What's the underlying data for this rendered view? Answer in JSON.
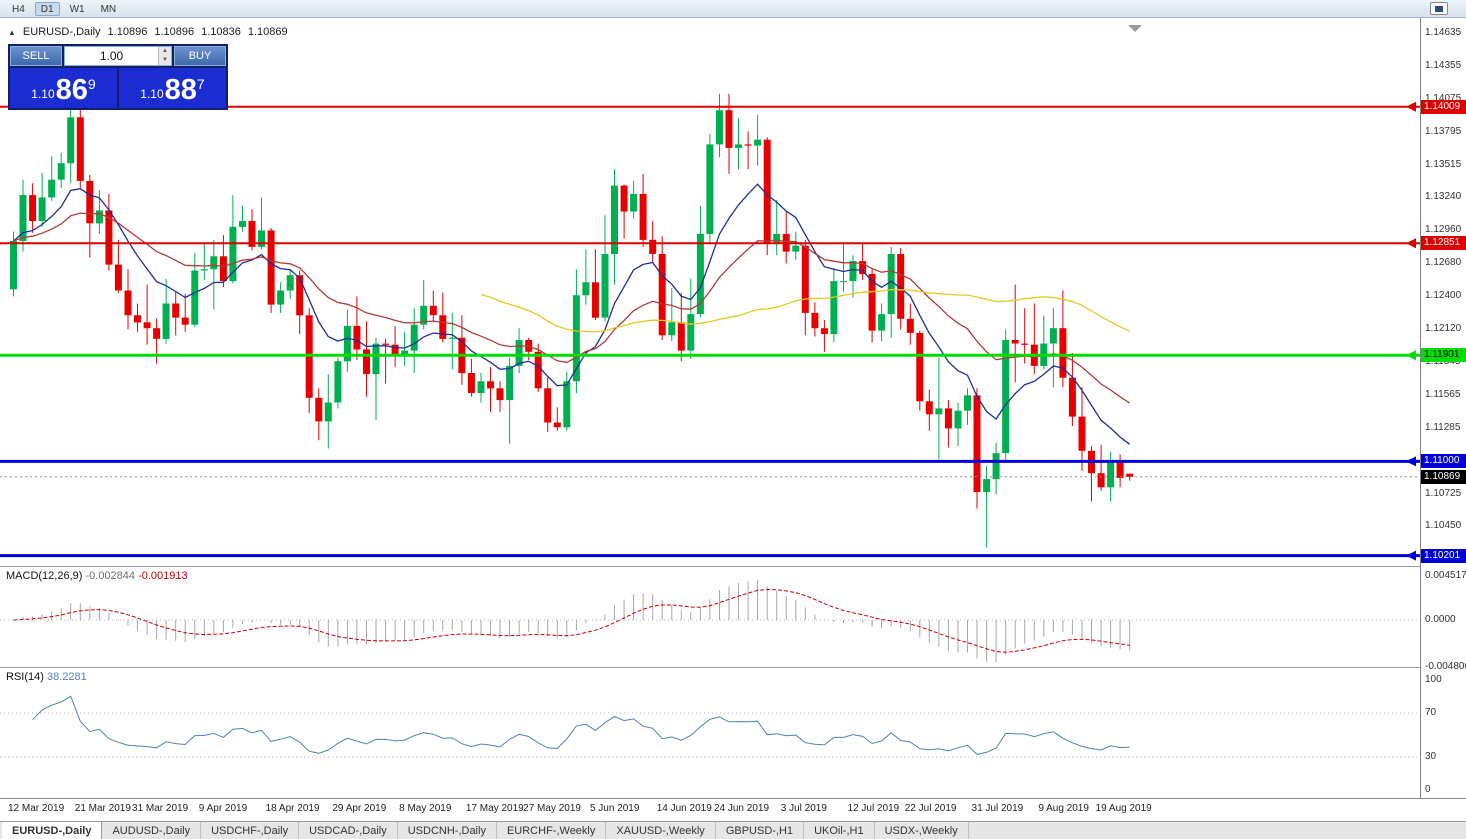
{
  "toolbar": {
    "timeframes": [
      "H4",
      "D1",
      "W1",
      "MN"
    ],
    "active": "D1"
  },
  "icons": {
    "collapse_triangle": "▲"
  },
  "chart_header": {
    "symbol": "EURUSD-,Daily",
    "open": "1.10896",
    "high": "1.10896",
    "low": "1.10836",
    "close": "1.10869"
  },
  "trade_panel": {
    "sell_label": "SELL",
    "buy_label": "BUY",
    "volume": "1.00",
    "sell_price": {
      "prefix": "1.10",
      "big": "86",
      "sup": "9"
    },
    "buy_price": {
      "prefix": "1.10",
      "big": "88",
      "sup": "7"
    }
  },
  "chart_data": {
    "type": "candlestick",
    "symbol": "EURUSD-",
    "timeframe": "Daily",
    "colors": {
      "up": "#00b050",
      "down": "#e60000"
    },
    "price_axis_ticks": [
      "1.14635",
      "1.14355",
      "1.14075",
      "1.13795",
      "1.13515",
      "1.13240",
      "1.12960",
      "1.12680",
      "1.12400",
      "1.12120",
      "1.11845",
      "1.11565",
      "1.11285",
      "1.11000",
      "1.10725",
      "1.10450"
    ],
    "hlines": [
      {
        "price": 1.14009,
        "text": "1.14009",
        "color": "#dd0000",
        "text_color": "#ffffff",
        "width": 2
      },
      {
        "price": 1.12851,
        "text": "1.12851",
        "color": "#dd0000",
        "text_color": "#ffffff",
        "width": 2
      },
      {
        "price": 1.11901,
        "text": "1.11901",
        "color": "#00dd00",
        "text_color": "#000000",
        "width": 3
      },
      {
        "price": 1.11,
        "text": "1.11000",
        "color": "#0000d8",
        "text_color": "#ffffff",
        "width": 3
      },
      {
        "price": 1.10201,
        "text": "1.10201",
        "color": "#0000d8",
        "text_color": "#ffffff",
        "width": 3
      }
    ],
    "current_price": {
      "value": 1.10869,
      "text": "1.10869"
    },
    "moving_averages": [
      {
        "type": "ema",
        "period": 10,
        "color": "#1f2f9c"
      },
      {
        "type": "ema",
        "period": 25,
        "color": "#b23b3b"
      },
      {
        "type": "sma",
        "period": 50,
        "color": "#e5c91f"
      }
    ],
    "candles": [
      [
        1.1246,
        1.1295,
        1.124,
        1.1287
      ],
      [
        1.1287,
        1.1339,
        1.1278,
        1.1326
      ],
      [
        1.1326,
        1.1336,
        1.1294,
        1.1304
      ],
      [
        1.1304,
        1.1345,
        1.1299,
        1.1324
      ],
      [
        1.1324,
        1.1359,
        1.1321,
        1.1339
      ],
      [
        1.1339,
        1.1362,
        1.1332,
        1.1353
      ],
      [
        1.1353,
        1.14,
        1.1336,
        1.1392
      ],
      [
        1.1392,
        1.1401,
        1.1332,
        1.1338
      ],
      [
        1.1338,
        1.1343,
        1.1273,
        1.1302
      ],
      [
        1.1302,
        1.133,
        1.1293,
        1.1313
      ],
      [
        1.1313,
        1.1327,
        1.1262,
        1.1267
      ],
      [
        1.1267,
        1.1288,
        1.1243,
        1.1245
      ],
      [
        1.1245,
        1.1263,
        1.1212,
        1.1224
      ],
      [
        1.1224,
        1.1234,
        1.121,
        1.1218
      ],
      [
        1.1218,
        1.125,
        1.1199,
        1.1213
      ],
      [
        1.1213,
        1.1221,
        1.1183,
        1.1204
      ],
      [
        1.1204,
        1.1255,
        1.12,
        1.1234
      ],
      [
        1.1234,
        1.1244,
        1.1207,
        1.1222
      ],
      [
        1.1222,
        1.1242,
        1.121,
        1.1216
      ],
      [
        1.1216,
        1.1277,
        1.1214,
        1.1262
      ],
      [
        1.1262,
        1.1285,
        1.1254,
        1.1263
      ],
      [
        1.1263,
        1.1288,
        1.1229,
        1.1274
      ],
      [
        1.1274,
        1.1292,
        1.1248,
        1.1253
      ],
      [
        1.1253,
        1.1326,
        1.1251,
        1.1299
      ],
      [
        1.1299,
        1.1317,
        1.1295,
        1.1304
      ],
      [
        1.1304,
        1.1314,
        1.1279,
        1.1282
      ],
      [
        1.1282,
        1.1324,
        1.128,
        1.1296
      ],
      [
        1.1296,
        1.1298,
        1.1226,
        1.1233
      ],
      [
        1.1233,
        1.1252,
        1.1226,
        1.1245
      ],
      [
        1.1245,
        1.1263,
        1.1238,
        1.1258
      ],
      [
        1.1258,
        1.1262,
        1.1208,
        1.1224
      ],
      [
        1.1224,
        1.123,
        1.1141,
        1.1154
      ],
      [
        1.1154,
        1.1162,
        1.1118,
        1.1134
      ],
      [
        1.1134,
        1.1174,
        1.1111,
        1.115
      ],
      [
        1.115,
        1.1188,
        1.1145,
        1.1185
      ],
      [
        1.1185,
        1.1229,
        1.1176,
        1.1215
      ],
      [
        1.1215,
        1.124,
        1.1186,
        1.1195
      ],
      [
        1.1195,
        1.1219,
        1.1155,
        1.1174
      ],
      [
        1.1174,
        1.1205,
        1.1135,
        1.12
      ],
      [
        1.12,
        1.1204,
        1.1166,
        1.1199
      ],
      [
        1.1199,
        1.1215,
        1.118,
        1.119
      ],
      [
        1.119,
        1.121,
        1.1181,
        1.1194
      ],
      [
        1.1194,
        1.123,
        1.1175,
        1.1216
      ],
      [
        1.1216,
        1.1254,
        1.1212,
        1.1232
      ],
      [
        1.1232,
        1.1245,
        1.1218,
        1.1224
      ],
      [
        1.1224,
        1.1243,
        1.1201,
        1.1204
      ],
      [
        1.1204,
        1.1226,
        1.1178,
        1.1205
      ],
      [
        1.1205,
        1.1224,
        1.1165,
        1.1175
      ],
      [
        1.1175,
        1.1187,
        1.1155,
        1.1158
      ],
      [
        1.1158,
        1.1175,
        1.115,
        1.1168
      ],
      [
        1.1168,
        1.118,
        1.1142,
        1.1162
      ],
      [
        1.1162,
        1.1168,
        1.1142,
        1.1152
      ],
      [
        1.1152,
        1.1188,
        1.1115,
        1.1181
      ],
      [
        1.1181,
        1.1213,
        1.1175,
        1.1203
      ],
      [
        1.1203,
        1.1205,
        1.1186,
        1.1193
      ],
      [
        1.1193,
        1.12,
        1.1159,
        1.1162
      ],
      [
        1.1162,
        1.1171,
        1.1125,
        1.1133
      ],
      [
        1.1133,
        1.1146,
        1.1126,
        1.1129
      ],
      [
        1.1129,
        1.1176,
        1.1126,
        1.1168
      ],
      [
        1.1168,
        1.1263,
        1.1158,
        1.1241
      ],
      [
        1.1241,
        1.128,
        1.1233,
        1.1252
      ],
      [
        1.1252,
        1.128,
        1.122,
        1.1222
      ],
      [
        1.1222,
        1.1309,
        1.1219,
        1.1276
      ],
      [
        1.1276,
        1.1348,
        1.125,
        1.1334
      ],
      [
        1.1334,
        1.1335,
        1.1289,
        1.1312
      ],
      [
        1.1312,
        1.1338,
        1.1306,
        1.1327
      ],
      [
        1.1327,
        1.1344,
        1.1282,
        1.1288
      ],
      [
        1.1288,
        1.1304,
        1.1268,
        1.1276
      ],
      [
        1.1276,
        1.1291,
        1.1203,
        1.1207
      ],
      [
        1.1207,
        1.1247,
        1.1202,
        1.1218
      ],
      [
        1.1218,
        1.1243,
        1.1185,
        1.1194
      ],
      [
        1.1194,
        1.1255,
        1.1187,
        1.1225
      ],
      [
        1.1225,
        1.1317,
        1.1222,
        1.1293
      ],
      [
        1.1293,
        1.1378,
        1.1285,
        1.1369
      ],
      [
        1.1369,
        1.1412,
        1.1358,
        1.1398
      ],
      [
        1.1398,
        1.1412,
        1.1344,
        1.1366
      ],
      [
        1.1366,
        1.1391,
        1.1348,
        1.1369
      ],
      [
        1.1369,
        1.138,
        1.1348,
        1.1368
      ],
      [
        1.1368,
        1.1394,
        1.1351,
        1.1373
      ],
      [
        1.1373,
        1.1375,
        1.1275,
        1.1285
      ],
      [
        1.1285,
        1.1322,
        1.1275,
        1.1293
      ],
      [
        1.1293,
        1.1312,
        1.1268,
        1.1278
      ],
      [
        1.1278,
        1.1295,
        1.1271,
        1.1283
      ],
      [
        1.1283,
        1.1288,
        1.1207,
        1.1226
      ],
      [
        1.1226,
        1.1235,
        1.1206,
        1.1213
      ],
      [
        1.1213,
        1.122,
        1.1193,
        1.1208
      ],
      [
        1.1208,
        1.1264,
        1.1201,
        1.1253
      ],
      [
        1.1253,
        1.1286,
        1.1244,
        1.1253
      ],
      [
        1.1253,
        1.1275,
        1.1239,
        1.127
      ],
      [
        1.127,
        1.1285,
        1.1254,
        1.1259
      ],
      [
        1.1259,
        1.1263,
        1.1201,
        1.1211
      ],
      [
        1.1211,
        1.1234,
        1.1202,
        1.1225
      ],
      [
        1.1225,
        1.1282,
        1.1205,
        1.1276
      ],
      [
        1.1276,
        1.1281,
        1.1212,
        1.1221
      ],
      [
        1.1221,
        1.1234,
        1.1199,
        1.1209
      ],
      [
        1.1209,
        1.1211,
        1.1143,
        1.1151
      ],
      [
        1.1151,
        1.1161,
        1.1126,
        1.114
      ],
      [
        1.114,
        1.1188,
        1.1102,
        1.1145
      ],
      [
        1.1145,
        1.1152,
        1.1112,
        1.1128
      ],
      [
        1.1128,
        1.115,
        1.1113,
        1.1143
      ],
      [
        1.1143,
        1.1162,
        1.1131,
        1.1156
      ],
      [
        1.1156,
        1.1162,
        1.106,
        1.1074
      ],
      [
        1.1074,
        1.1096,
        1.1027,
        1.1085
      ],
      [
        1.1085,
        1.1116,
        1.1072,
        1.1107
      ],
      [
        1.1107,
        1.1212,
        1.1101,
        1.1203
      ],
      [
        1.1203,
        1.125,
        1.1167,
        1.12
      ],
      [
        1.12,
        1.123,
        1.1183,
        1.1199
      ],
      [
        1.1199,
        1.1234,
        1.1174,
        1.1181
      ],
      [
        1.1181,
        1.1224,
        1.1178,
        1.12
      ],
      [
        1.12,
        1.123,
        1.1163,
        1.1213
      ],
      [
        1.1213,
        1.1245,
        1.1163,
        1.1171
      ],
      [
        1.1171,
        1.1192,
        1.113,
        1.1138
      ],
      [
        1.1138,
        1.1163,
        1.1092,
        1.1109
      ],
      [
        1.1109,
        1.1113,
        1.1066,
        1.109
      ],
      [
        1.109,
        1.1114,
        1.1075,
        1.1078
      ],
      [
        1.1078,
        1.1108,
        1.1066,
        1.1099
      ],
      [
        1.1099,
        1.1106,
        1.1078,
        1.1086
      ],
      [
        1.10896,
        1.10896,
        1.10836,
        1.10869
      ]
    ],
    "date_labels": [
      [
        0,
        "12 Mar 2019"
      ],
      [
        7,
        "21 Mar 2019"
      ],
      [
        13,
        "31 Mar 2019"
      ],
      [
        20,
        "9 Apr 2019"
      ],
      [
        27,
        "18 Apr 2019"
      ],
      [
        34,
        "29 Apr 2019"
      ],
      [
        41,
        "8 May 2019"
      ],
      [
        48,
        "17 May 2019"
      ],
      [
        54,
        "27 May 2019"
      ],
      [
        61,
        "5 Jun 2019"
      ],
      [
        68,
        "14 Jun 2019"
      ],
      [
        74,
        "24 Jun 2019"
      ],
      [
        81,
        "3 Jul 2019"
      ],
      [
        88,
        "12 Jul 2019"
      ],
      [
        94,
        "22 Jul 2019"
      ],
      [
        101,
        "31 Jul 2019"
      ],
      [
        108,
        "9 Aug 2019"
      ],
      [
        114,
        "19 Aug 2019"
      ]
    ],
    "macd": {
      "label": "MACD(12,26,9)",
      "value_main": "-0.002844",
      "value_signal": "-0.001913",
      "fast": 12,
      "slow": 26,
      "signal": 9,
      "bar_color": "#a6a6a6",
      "signal_color": "#cc0000",
      "axis": [
        {
          "v": 0.004517,
          "text": "0.004517"
        },
        {
          "v": 0,
          "text": "0.0000"
        },
        {
          "v": -0.004806,
          "text": "-0.004806"
        }
      ]
    },
    "rsi": {
      "label": "RSI(14)",
      "value": "38.2281",
      "period": 14,
      "color": "#4f81bd",
      "levels": [
        70,
        30
      ],
      "axis": [
        {
          "v": 100,
          "text": "100"
        },
        {
          "v": 70,
          "text": "70"
        },
        {
          "v": 30,
          "text": "30"
        },
        {
          "v": 0,
          "text": "0"
        }
      ]
    }
  },
  "tabs": {
    "active_index": 0,
    "items": [
      "EURUSD-,Daily",
      "AUDUSD-,Daily",
      "USDCHF-,Daily",
      "USDCAD-,Daily",
      "USDCNH-,Daily",
      "EURCHF-,Weekly",
      "XAUUSD-,Weekly",
      "GBPUSD-,H1",
      "UKOil-,H1",
      "USDX-,Weekly"
    ]
  }
}
